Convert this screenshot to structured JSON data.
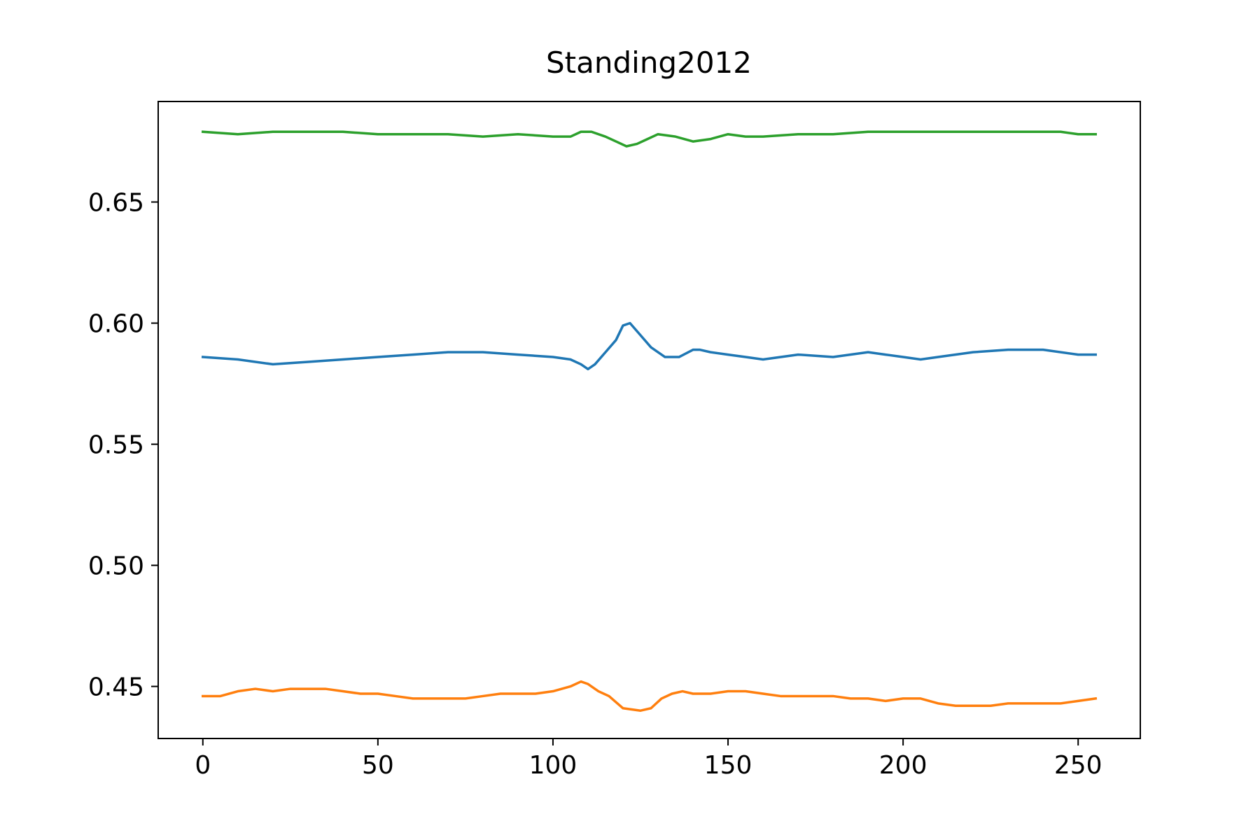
{
  "chart_data": {
    "type": "line",
    "title": "Standing2012",
    "xlabel": "",
    "ylabel": "",
    "xlim": [
      -12.75,
      267.75
    ],
    "ylim": [
      0.4285,
      0.6915
    ],
    "grid": false,
    "legend": "none",
    "x_ticks": [
      0,
      50,
      100,
      150,
      200,
      250
    ],
    "x_tick_labels": [
      "0",
      "50",
      "100",
      "150",
      "200",
      "250"
    ],
    "y_ticks": [
      0.45,
      0.5,
      0.55,
      0.6,
      0.65
    ],
    "y_tick_labels": [
      "0.45",
      "0.50",
      "0.55",
      "0.60",
      "0.65"
    ],
    "series": [
      {
        "color": "#1f77b4",
        "x": [
          0,
          10,
          20,
          30,
          40,
          50,
          60,
          70,
          80,
          90,
          100,
          105,
          108,
          110,
          112,
          115,
          118,
          120,
          122,
          125,
          128,
          132,
          136,
          140,
          142,
          145,
          150,
          155,
          160,
          170,
          180,
          190,
          195,
          200,
          205,
          210,
          220,
          230,
          240,
          250,
          255
        ],
        "values": [
          0.586,
          0.585,
          0.583,
          0.584,
          0.585,
          0.586,
          0.587,
          0.588,
          0.588,
          0.587,
          0.586,
          0.585,
          0.583,
          0.581,
          0.583,
          0.588,
          0.593,
          0.599,
          0.6,
          0.595,
          0.59,
          0.586,
          0.586,
          0.589,
          0.589,
          0.588,
          0.587,
          0.586,
          0.585,
          0.587,
          0.586,
          0.588,
          0.587,
          0.586,
          0.585,
          0.586,
          0.588,
          0.589,
          0.589,
          0.587,
          0.587
        ]
      },
      {
        "color": "#ff7f0e",
        "x": [
          0,
          5,
          10,
          15,
          20,
          25,
          30,
          35,
          40,
          45,
          50,
          55,
          60,
          65,
          70,
          75,
          80,
          85,
          90,
          95,
          100,
          105,
          108,
          110,
          113,
          116,
          120,
          125,
          128,
          131,
          134,
          137,
          140,
          145,
          150,
          155,
          160,
          165,
          170,
          175,
          180,
          185,
          190,
          195,
          200,
          205,
          210,
          215,
          220,
          225,
          230,
          235,
          240,
          245,
          250,
          255
        ],
        "values": [
          0.446,
          0.446,
          0.448,
          0.449,
          0.448,
          0.449,
          0.449,
          0.449,
          0.448,
          0.447,
          0.447,
          0.446,
          0.445,
          0.445,
          0.445,
          0.445,
          0.446,
          0.447,
          0.447,
          0.447,
          0.448,
          0.45,
          0.452,
          0.451,
          0.448,
          0.446,
          0.441,
          0.44,
          0.441,
          0.445,
          0.447,
          0.448,
          0.447,
          0.447,
          0.448,
          0.448,
          0.447,
          0.446,
          0.446,
          0.446,
          0.446,
          0.445,
          0.445,
          0.444,
          0.445,
          0.445,
          0.443,
          0.442,
          0.442,
          0.442,
          0.443,
          0.443,
          0.443,
          0.443,
          0.444,
          0.445
        ]
      },
      {
        "color": "#2ca02c",
        "x": [
          0,
          10,
          20,
          30,
          40,
          50,
          60,
          70,
          80,
          90,
          100,
          105,
          108,
          111,
          115,
          118,
          121,
          124,
          127,
          130,
          135,
          140,
          145,
          150,
          155,
          160,
          170,
          180,
          190,
          200,
          210,
          220,
          230,
          240,
          245,
          250,
          255
        ],
        "values": [
          0.679,
          0.678,
          0.679,
          0.679,
          0.679,
          0.678,
          0.678,
          0.678,
          0.677,
          0.678,
          0.677,
          0.677,
          0.679,
          0.679,
          0.677,
          0.675,
          0.673,
          0.674,
          0.676,
          0.678,
          0.677,
          0.675,
          0.676,
          0.678,
          0.677,
          0.677,
          0.678,
          0.678,
          0.679,
          0.679,
          0.679,
          0.679,
          0.679,
          0.679,
          0.679,
          0.678,
          0.678
        ]
      }
    ]
  }
}
